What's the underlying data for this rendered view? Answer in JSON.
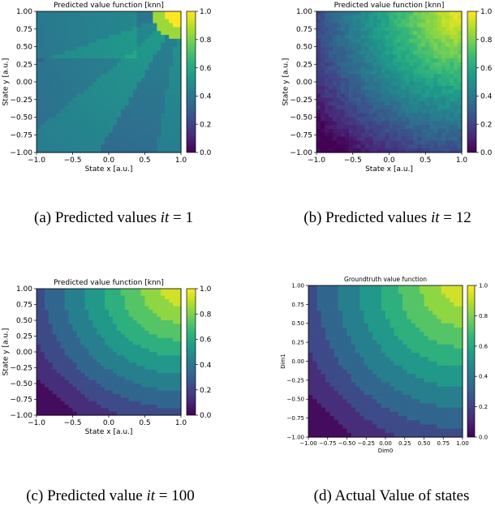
{
  "colors": {
    "colormap": "viridis",
    "viridis_stops": [
      "#440154",
      "#482878",
      "#3e4989",
      "#31688e",
      "#26828e",
      "#1f9e89",
      "#35b779",
      "#6ece58",
      "#b5de2b",
      "#fde725"
    ]
  },
  "captions": [
    {
      "label": "(a) Predicted values",
      "math": "it",
      "eq": "= 1"
    },
    {
      "label": "(b) Predicted values",
      "math": "it",
      "eq": "= 12"
    },
    {
      "label": "(c) Predicted value",
      "math": "it",
      "eq": "= 100"
    },
    {
      "label": "(d) Actual Value of states",
      "math": "",
      "eq": ""
    }
  ],
  "chart_data": [
    {
      "type": "heatmap",
      "title": "Predicted value function [knn]",
      "xlabel": "State x [a.u.]",
      "ylabel": "State y [a.u.]",
      "xlim": [
        -1.0,
        1.0
      ],
      "ylim": [
        -1.0,
        1.0
      ],
      "xticks": [
        "-1.0",
        "-0.5",
        "0.0",
        "0.5",
        "1.0"
      ],
      "yticks": [
        "-1.00",
        "-0.75",
        "-0.50",
        "-0.25",
        "0.00",
        "0.25",
        "0.50",
        "0.75",
        "1.00"
      ],
      "colorbar": {
        "range": [
          0.0,
          1.0
        ],
        "ticks": [
          "0.0",
          "0.2",
          "0.4",
          "0.6",
          "0.8",
          "1.0"
        ]
      },
      "field": "early",
      "peak": [
        1.0,
        1.0
      ],
      "value_range": [
        0.25,
        1.0
      ]
    },
    {
      "type": "heatmap",
      "title": "Predicted value function [knn]",
      "xlabel": "State x [a.u.]",
      "ylabel": "State y [a.u.]",
      "xlim": [
        -1.0,
        1.0
      ],
      "ylim": [
        -1.0,
        1.0
      ],
      "xticks": [
        "-1.0",
        "-0.5",
        "0.0",
        "0.5",
        "1.0"
      ],
      "yticks": [
        "-1.00",
        "-0.75",
        "-0.50",
        "-0.25",
        "0.00",
        "0.25",
        "0.50",
        "0.75",
        "1.00"
      ],
      "colorbar": {
        "range": [
          0.0,
          1.0
        ],
        "ticks": [
          "0.0",
          "0.2",
          "0.4",
          "0.6",
          "0.8",
          "1.0"
        ]
      },
      "field": "noisy-radial",
      "peak": [
        1.0,
        1.0
      ],
      "value_range": [
        0.0,
        1.0
      ]
    },
    {
      "type": "heatmap",
      "title": "Predicted value function [knn]",
      "xlabel": "State x [a.u.]",
      "ylabel": "State y [a.u.]",
      "xlim": [
        -1.0,
        1.0
      ],
      "ylim": [
        -1.0,
        1.0
      ],
      "xticks": [
        "-1.0",
        "-0.5",
        "0.0",
        "0.5",
        "1.0"
      ],
      "yticks": [
        "-1.00",
        "-0.75",
        "-0.50",
        "-0.25",
        "0.00",
        "0.25",
        "0.50",
        "0.75",
        "1.00"
      ],
      "colorbar": {
        "range": [
          0.0,
          1.0
        ],
        "ticks": [
          "0.0",
          "0.2",
          "0.4",
          "0.6",
          "0.8",
          "1.0"
        ]
      },
      "field": "radial-bands",
      "peak": [
        1.0,
        1.0
      ],
      "value_range": [
        0.0,
        1.0
      ]
    },
    {
      "type": "heatmap",
      "title": "Groundtruth value function",
      "xlabel": "Dim0",
      "ylabel": "Dim1",
      "xlim": [
        -1.0,
        1.0
      ],
      "ylim": [
        -1.0,
        1.0
      ],
      "xticks": [
        "-1.00",
        "-0.75",
        "-0.50",
        "-0.25",
        "0.00",
        "0.25",
        "0.50",
        "0.75",
        "1.00"
      ],
      "yticks": [
        "-1.00",
        "-0.75",
        "-0.50",
        "-0.25",
        "0.00",
        "0.25",
        "0.50",
        "0.75",
        "1.00"
      ],
      "colorbar": {
        "range": [
          0.0,
          1.0
        ],
        "ticks": [
          "0.0",
          "0.2",
          "0.4",
          "0.6",
          "0.8",
          "1.0"
        ]
      },
      "field": "radial-bands",
      "peak": [
        1.0,
        1.0
      ],
      "value_range": [
        0.0,
        1.0
      ]
    }
  ]
}
